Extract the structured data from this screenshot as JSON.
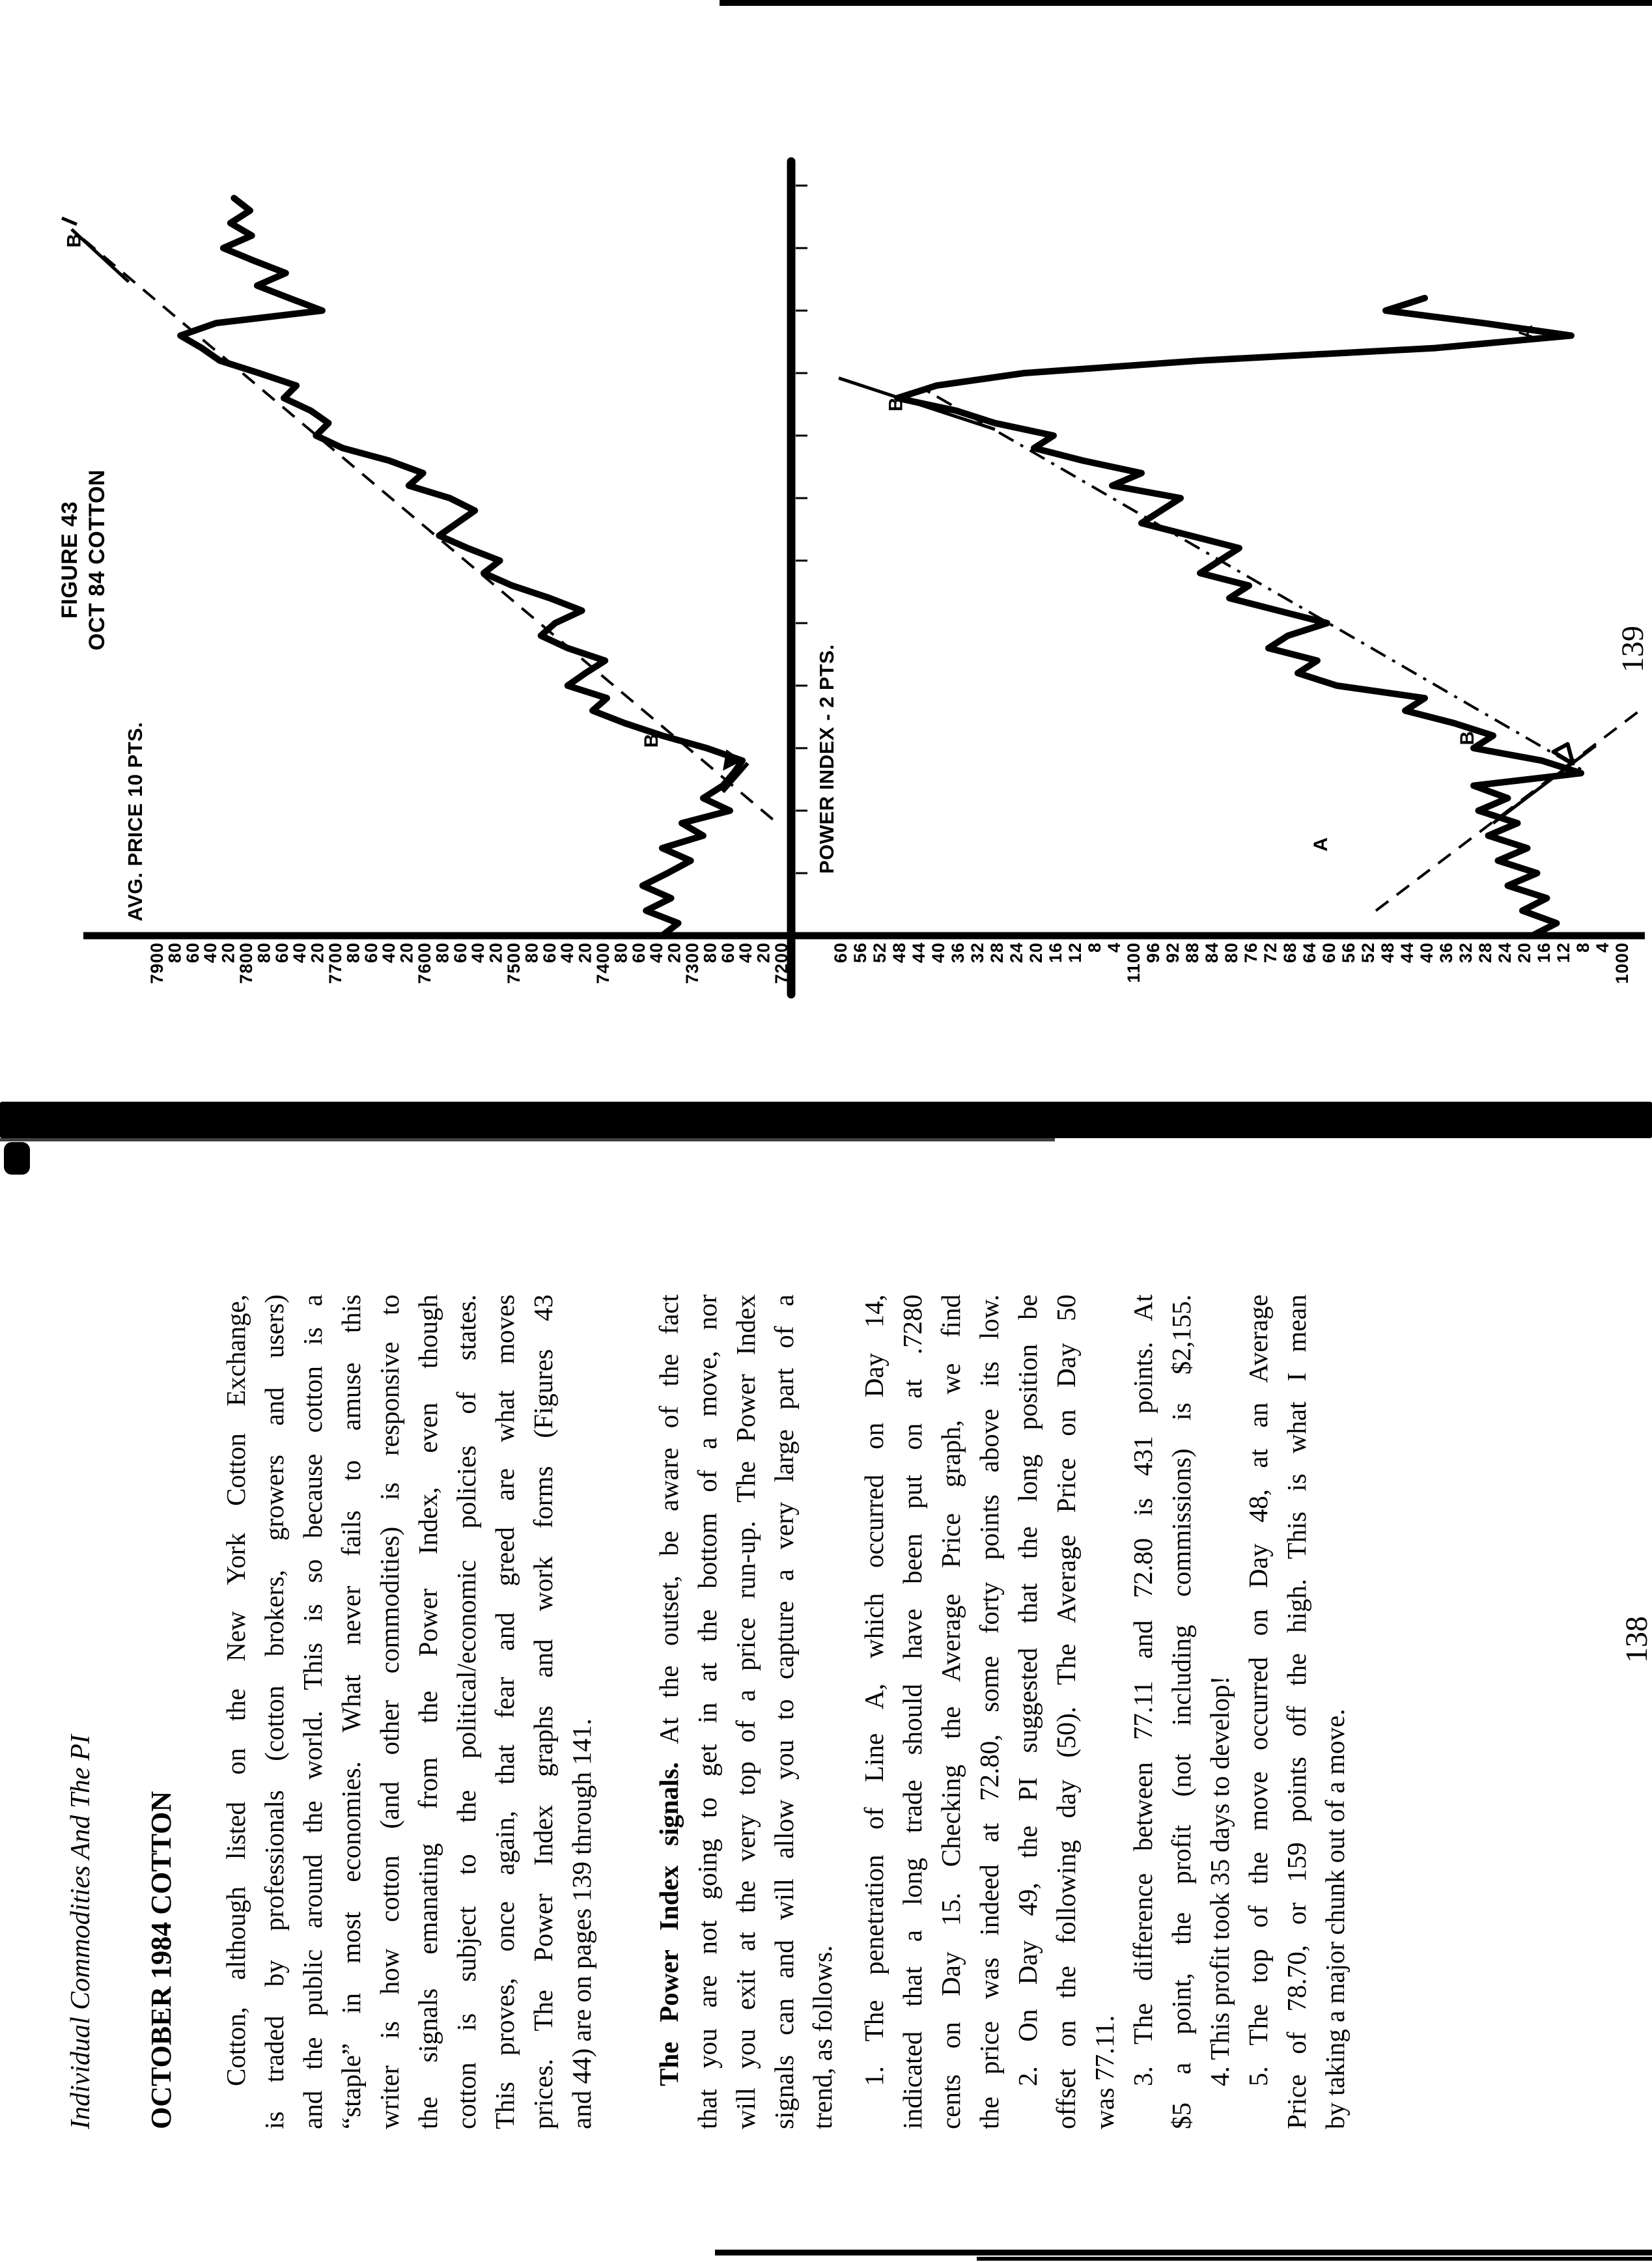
{
  "figure_page": {
    "figure_title": "FIGURE 43",
    "figure_subtitle": "OCT 84 COTTON",
    "page_number": "139"
  },
  "chart_data": [
    {
      "type": "line",
      "title": "AVG. PRICE 10 PTS.",
      "ylabel_ticks": [
        "7900",
        "80",
        "60",
        "40",
        "20",
        "7800",
        "80",
        "60",
        "40",
        "20",
        "7700",
        "80",
        "60",
        "40",
        "20",
        "7600",
        "80",
        "60",
        "40",
        "20",
        "7500",
        "80",
        "60",
        "40",
        "20",
        "7400",
        "80",
        "60",
        "40",
        "20",
        "7300",
        "80",
        "60",
        "40",
        "20",
        "7200"
      ],
      "ylim": [
        7180,
        7940
      ],
      "xlim": [
        0,
        62
      ],
      "grid": false,
      "series": [
        {
          "name": "avg_price",
          "points": [
            [
              0,
              7330
            ],
            [
              1,
              7312
            ],
            [
              2,
              7348
            ],
            [
              3,
              7320
            ],
            [
              4,
              7352
            ],
            [
              5,
              7324
            ],
            [
              6,
              7298
            ],
            [
              7,
              7330
            ],
            [
              8,
              7284
            ],
            [
              9,
              7308
            ],
            [
              10,
              7254
            ],
            [
              11,
              7284
            ],
            [
              12,
              7262
            ],
            [
              13,
              7250
            ],
            [
              14,
              7240
            ],
            [
              15,
              7280
            ],
            [
              16,
              7330
            ],
            [
              17,
              7372
            ],
            [
              18,
              7408
            ],
            [
              19,
              7392
            ],
            [
              20,
              7436
            ],
            [
              21,
              7416
            ],
            [
              22,
              7394
            ],
            [
              23,
              7436
            ],
            [
              24,
              7466
            ],
            [
              25,
              7450
            ],
            [
              26,
              7420
            ],
            [
              27,
              7456
            ],
            [
              28,
              7498
            ],
            [
              29,
              7530
            ],
            [
              30,
              7512
            ],
            [
              31,
              7548
            ],
            [
              32,
              7580
            ],
            [
              33,
              7560
            ],
            [
              34,
              7540
            ],
            [
              35,
              7568
            ],
            [
              36,
              7614
            ],
            [
              37,
              7598
            ],
            [
              38,
              7636
            ],
            [
              39,
              7688
            ],
            [
              40,
              7718
            ],
            [
              41,
              7704
            ],
            [
              42,
              7724
            ],
            [
              43,
              7754
            ],
            [
              44,
              7740
            ],
            [
              45,
              7782
            ],
            [
              46,
              7826
            ],
            [
              47,
              7846
            ],
            [
              48,
              7870
            ],
            [
              49,
              7830
            ],
            [
              50,
              7711
            ],
            [
              51,
              7748
            ],
            [
              52,
              7784
            ],
            [
              53,
              7752
            ],
            [
              54,
              7788
            ],
            [
              55,
              7822
            ],
            [
              56,
              7790
            ],
            [
              57,
              7814
            ],
            [
              58,
              7792
            ],
            [
              59,
              7810
            ]
          ]
        }
      ],
      "trendlines": [
        {
          "name": "B",
          "x1": 9.3,
          "y1": 7206,
          "x2": 56.5,
          "y2": 7992,
          "style": "dashed"
        }
      ],
      "annotations": [
        {
          "text": "B",
          "x": 15.6,
          "y": 7335
        },
        {
          "text": "B",
          "x": 55.6,
          "y": 7982,
          "prime": true
        }
      ]
    },
    {
      "type": "line",
      "title": "POWER INDEX - 2 PTS.",
      "ylabel_ticks": [
        "60",
        "56",
        "52",
        "48",
        "44",
        "40",
        "36",
        "32",
        "28",
        "24",
        "20",
        "16",
        "12",
        "8",
        "4",
        "1100",
        "96",
        "92",
        "88",
        "84",
        "80",
        "76",
        "72",
        "68",
        "64",
        "60",
        "56",
        "52",
        "48",
        "44",
        "40",
        "36",
        "32",
        "28",
        "24",
        "20",
        "16",
        "12",
        "8",
        "4",
        "1000"
      ],
      "ylim": [
        996,
        1164
      ],
      "xlim": [
        0,
        62
      ],
      "grid": false,
      "series": [
        {
          "name": "power_index",
          "points": [
            [
              0,
              1018
            ],
            [
              1,
              1013
            ],
            [
              2,
              1020
            ],
            [
              3,
              1015
            ],
            [
              4,
              1023
            ],
            [
              5,
              1017
            ],
            [
              6,
              1025
            ],
            [
              7,
              1019
            ],
            [
              8,
              1027
            ],
            [
              9,
              1021
            ],
            [
              10,
              1029
            ],
            [
              11,
              1023
            ],
            [
              12,
              1030
            ],
            [
              13,
              1008
            ],
            [
              14,
              1016
            ],
            [
              15,
              1030
            ],
            [
              16,
              1026
            ],
            [
              17,
              1034
            ],
            [
              18,
              1044
            ],
            [
              19,
              1040
            ],
            [
              20,
              1058
            ],
            [
              21,
              1066
            ],
            [
              22,
              1062
            ],
            [
              23,
              1072
            ],
            [
              24,
              1068
            ],
            [
              25,
              1060
            ],
            [
              26,
              1070
            ],
            [
              27,
              1080
            ],
            [
              28,
              1076
            ],
            [
              29,
              1086
            ],
            [
              30,
              1082
            ],
            [
              31,
              1078
            ],
            [
              32,
              1088
            ],
            [
              33,
              1098
            ],
            [
              34,
              1094
            ],
            [
              35,
              1090
            ],
            [
              36,
              1104
            ],
            [
              37,
              1098
            ],
            [
              38,
              1110
            ],
            [
              39,
              1120
            ],
            [
              40,
              1116
            ],
            [
              41,
              1128
            ],
            [
              42,
              1136
            ],
            [
              43,
              1148
            ],
            [
              44,
              1140
            ],
            [
              45,
              1122
            ],
            [
              46,
              1086
            ],
            [
              47,
              1038
            ],
            [
              48,
              1010
            ],
            [
              49,
              1028
            ],
            [
              50,
              1048
            ],
            [
              51,
              1040
            ]
          ]
        }
      ],
      "trendlines": [
        {
          "name": "A",
          "x1": 2,
          "y1": 1050,
          "x2": 18,
          "y2": 996,
          "style": "dashed"
        },
        {
          "name": "B",
          "x1": 13.3,
          "y1": 1008,
          "x2": 43.6,
          "y2": 1142,
          "style": "dash-dot"
        }
      ],
      "annotations": [
        {
          "text": "A",
          "x": 7.3,
          "y": 1060
        },
        {
          "text": "B",
          "x": 15.8,
          "y": 1030
        },
        {
          "text": "B",
          "x": 42.5,
          "y": 1147
        },
        {
          "text": "A",
          "x": 48.3,
          "y": 1018
        }
      ],
      "markers": [
        {
          "type": "open-triangle",
          "x": 14.6,
          "y": 1011
        }
      ]
    }
  ],
  "text_page": {
    "page_number": "138",
    "running_header": "Individual Commodities And The PI",
    "section_heading": "OCTOBER 1984 COTTON",
    "lines": [
      {
        "text": "Cotton, although listed on the New York Cotton Exchange,",
        "indent": true
      },
      {
        "text": "is traded by professionals (cotton brokers, growers and users)"
      },
      {
        "text": "and the public around the world. This is so because cotton is a"
      },
      {
        "text": "“staple” in most economies. What never fails to amuse this"
      },
      {
        "text": "writer is how cotton (and other commodities) is responsive to"
      },
      {
        "text": "the signals emanating from the Power Index, even though"
      },
      {
        "text": "cotton is subject to the political/economic policies of states."
      },
      {
        "text": "This proves, once again, that fear and greed are what moves"
      },
      {
        "text": "prices. The Power Index graphs and work forms (Figures 43"
      },
      {
        "text": "and 44) are on pages 139 through 141.",
        "short": true
      },
      {
        "bold_lead": "The Power Index signals.",
        "text": " At the outset, be aware of the fact",
        "indent": true,
        "gap": "para"
      },
      {
        "text": "that you are not going to get in at the bottom of a move, nor"
      },
      {
        "text": "will you exit at the very top of a price run-up. The Power Index"
      },
      {
        "text": "signals can and will allow you to capture a very large part of a"
      },
      {
        "text": "trend, as follows.",
        "short": true
      },
      {
        "text": "1. The penetration of Line A, which occurred on Day 14,",
        "indent": true,
        "gap": "small"
      },
      {
        "text": "indicated that a long trade should have been put on at .7280"
      },
      {
        "text": "cents on Day 15. Checking the Average Price graph, we find"
      },
      {
        "text": "the price was indeed at 72.80, some forty points above its low."
      },
      {
        "text": "2. On Day 49, the PI suggested that the long position be",
        "indent": true
      },
      {
        "text": "offset on the following day (50). The Average Price on Day 50"
      },
      {
        "text": "was 77.11.",
        "short": true
      },
      {
        "text": "3. The difference between 77.11 and 72.80 is 431 points. At",
        "indent": true
      },
      {
        "text": "$5 a point, the profit (not including commissions) is $2,155."
      },
      {
        "text": "4. This profit took 35 days to develop!",
        "indent": true,
        "short": true
      },
      {
        "text": "5. The top of the move occurred on Day 48, at an Average",
        "indent": true
      },
      {
        "text": "Price of 78.70, or 159 points off the high. This is what I mean"
      },
      {
        "text": "by taking a major chunk out of a move.",
        "short": true
      }
    ]
  }
}
